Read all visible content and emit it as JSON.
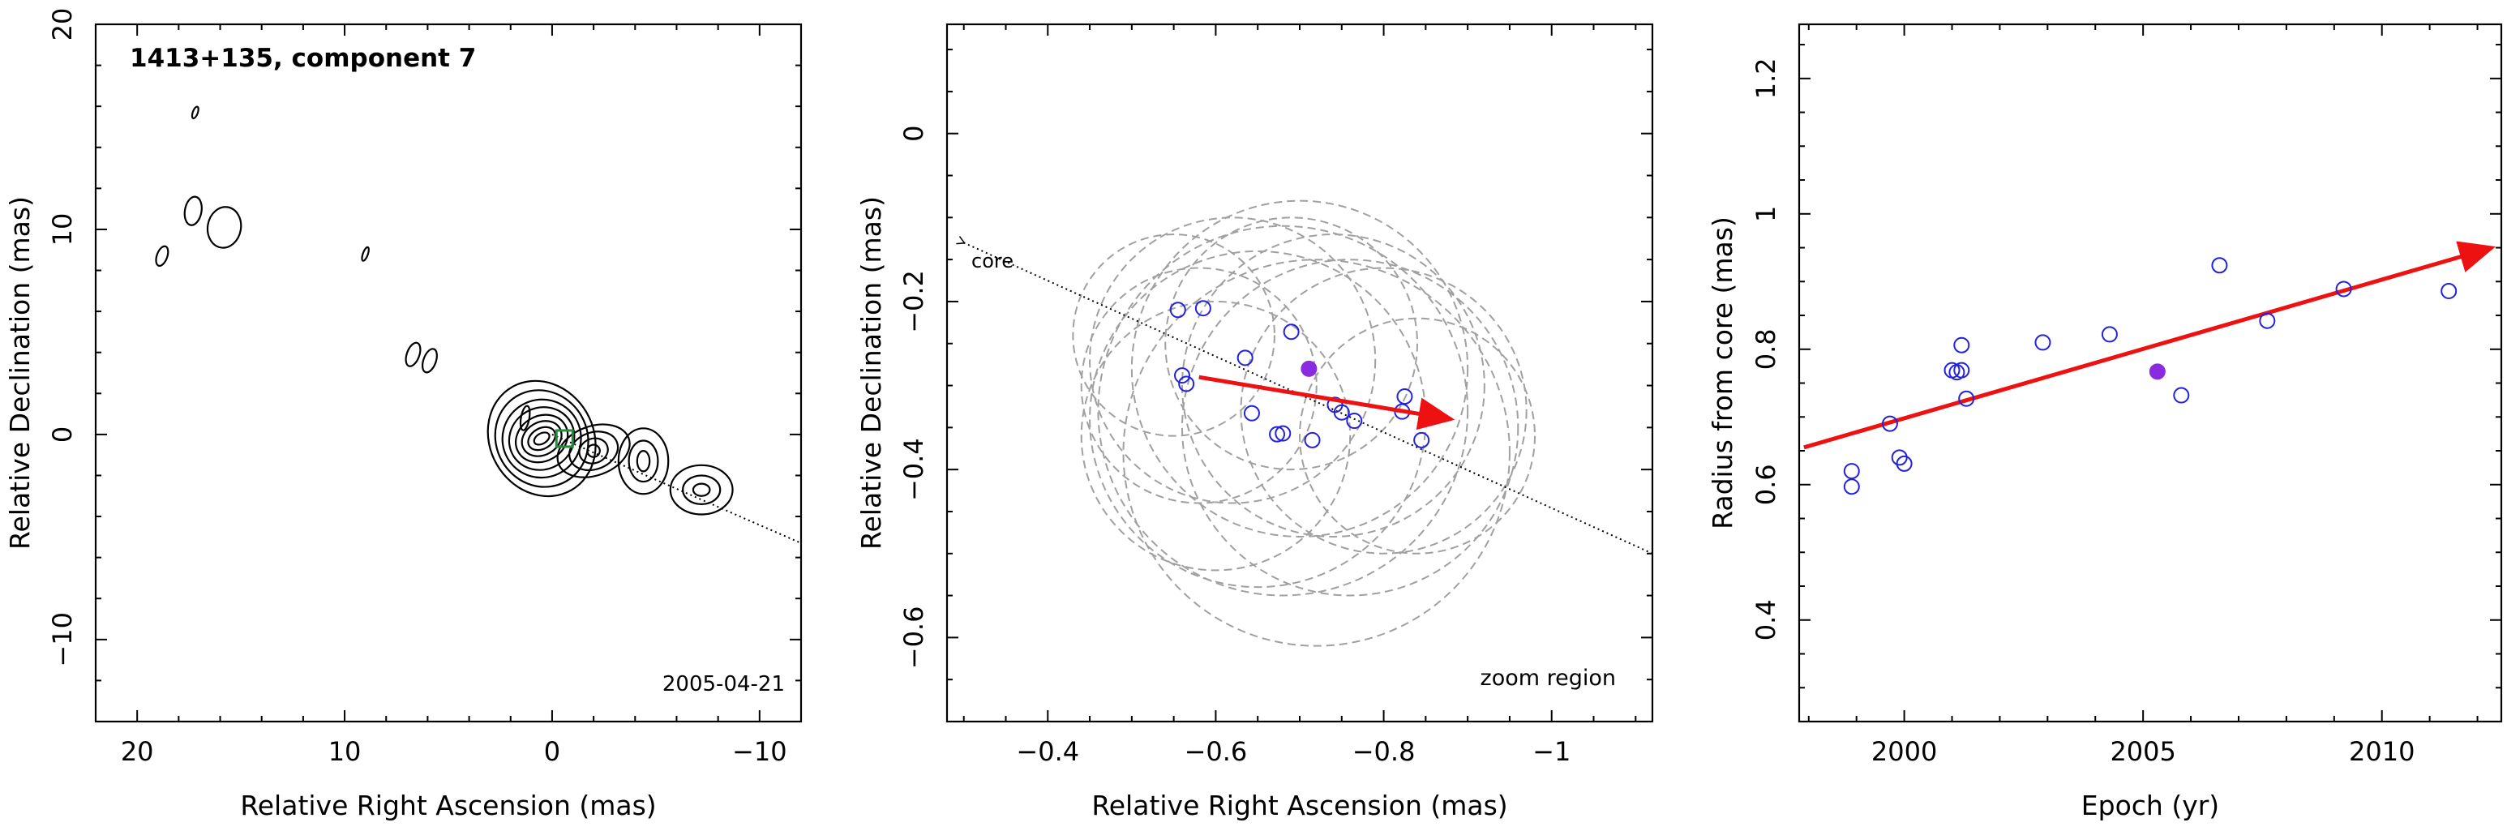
{
  "chart_data": [
    {
      "type": "contour",
      "panel": "map",
      "title": "1413+135, component 7",
      "date": "2005-04-21",
      "xlabel": "Relative Right Ascension (mas)",
      "ylabel": "Relative Declination (mas)",
      "xlim": [
        22,
        -12
      ],
      "ylim": [
        -14,
        20
      ],
      "xticks": [
        20,
        10,
        0,
        -10
      ],
      "yticks": [
        20,
        10,
        0,
        -10
      ],
      "xtick_labels": [
        "20",
        "10",
        "0",
        "−10"
      ],
      "ytick_labels": [
        "20",
        "10",
        "0",
        "−10"
      ],
      "core_line_end": [
        -12,
        -5.3
      ],
      "component_marker": [
        -0.6,
        -0.2
      ],
      "contour_groups": [
        {
          "cx": 0.5,
          "cy": -0.2,
          "rx": [
            0.4,
            0.7,
            1.0,
            1.3,
            1.6,
            1.9,
            2.2,
            2.5
          ],
          "ry": [
            0.25,
            0.5,
            0.8,
            1.1,
            1.5,
            1.9,
            2.4,
            2.9
          ],
          "rot": -30
        },
        {
          "cx": -2.0,
          "cy": -0.8,
          "rx": [
            0.3,
            0.7,
            1.2,
            1.8
          ],
          "ry": [
            0.3,
            0.6,
            0.9,
            1.2
          ],
          "rot": -20
        },
        {
          "cx": -4.4,
          "cy": -1.3,
          "rx": [
            0.3,
            0.7,
            1.2
          ],
          "ry": [
            0.5,
            1.0,
            1.6
          ],
          "rot": 0
        },
        {
          "cx": -7.2,
          "cy": -2.7,
          "rx": [
            0.4,
            0.9,
            1.5
          ],
          "ry": [
            0.3,
            0.7,
            1.2
          ],
          "rot": 0
        },
        {
          "cx": 15.8,
          "cy": 10.1,
          "rx": [
            0.8
          ],
          "ry": [
            1.0
          ],
          "rot": 10
        },
        {
          "cx": 17.3,
          "cy": 10.9,
          "rx": [
            0.4
          ],
          "ry": [
            0.7
          ],
          "rot": 10
        },
        {
          "cx": 18.8,
          "cy": 8.7,
          "rx": [
            0.25
          ],
          "ry": [
            0.5
          ],
          "rot": 20
        },
        {
          "cx": 6.7,
          "cy": 3.9,
          "rx": [
            0.3
          ],
          "ry": [
            0.6
          ],
          "rot": 20
        },
        {
          "cx": 5.9,
          "cy": 3.6,
          "rx": [
            0.3
          ],
          "ry": [
            0.6
          ],
          "rot": 20
        },
        {
          "cx": 9.0,
          "cy": 8.8,
          "rx": [
            0.12
          ],
          "ry": [
            0.35
          ],
          "rot": 20
        },
        {
          "cx": 17.2,
          "cy": 15.7,
          "rx": [
            0.12
          ],
          "ry": [
            0.3
          ],
          "rot": 20
        },
        {
          "cx": 1.3,
          "cy": 0.8,
          "rx": [
            0.2
          ],
          "ry": [
            0.6
          ],
          "rot": 10
        }
      ]
    },
    {
      "type": "scatter",
      "panel": "zoom",
      "xlabel": "Relative Right Ascension (mas)",
      "ylabel": "Relative Declination (mas)",
      "xlim": [
        -0.28,
        -1.12
      ],
      "ylim": [
        -0.7,
        0.13
      ],
      "xticks": [
        -0.4,
        -0.6,
        -0.8,
        -1.0
      ],
      "xtick_labels": [
        "−0.4",
        "−0.6",
        "−0.8",
        "−1"
      ],
      "yticks": [
        0,
        -0.2,
        -0.4,
        -0.6
      ],
      "ytick_labels": [
        "0",
        "−0.2",
        "−0.4",
        "−0.6"
      ],
      "annotation_core": "core",
      "annotation_region": "zoom region",
      "core_line": {
        "from": [
          -1.12,
          -0.5
        ],
        "to": [
          -0.3,
          -0.13
        ]
      },
      "points": [
        {
          "x": -0.555,
          "y": -0.21
        },
        {
          "x": -0.585,
          "y": -0.208
        },
        {
          "x": -0.56,
          "y": -0.288
        },
        {
          "x": -0.565,
          "y": -0.298
        },
        {
          "x": -0.635,
          "y": -0.267
        },
        {
          "x": -0.69,
          "y": -0.236
        },
        {
          "x": -0.643,
          "y": -0.333
        },
        {
          "x": -0.673,
          "y": -0.358
        },
        {
          "x": -0.68,
          "y": -0.357
        },
        {
          "x": -0.715,
          "y": -0.365
        },
        {
          "x": -0.742,
          "y": -0.323
        },
        {
          "x": -0.75,
          "y": -0.332
        },
        {
          "x": -0.765,
          "y": -0.342
        },
        {
          "x": -0.825,
          "y": -0.313
        },
        {
          "x": -0.822,
          "y": -0.331
        },
        {
          "x": -0.845,
          "y": -0.365
        }
      ],
      "highlight_point": {
        "x": -0.711,
        "y": -0.28
      },
      "circles": [
        {
          "x": -0.55,
          "y": -0.24,
          "r": 0.12
        },
        {
          "x": -0.58,
          "y": -0.3,
          "r": 0.14
        },
        {
          "x": -0.62,
          "y": -0.27,
          "r": 0.17
        },
        {
          "x": -0.65,
          "y": -0.34,
          "r": 0.2
        },
        {
          "x": -0.68,
          "y": -0.33,
          "r": 0.22
        },
        {
          "x": -0.7,
          "y": -0.28,
          "r": 0.2
        },
        {
          "x": -0.72,
          "y": -0.38,
          "r": 0.23
        },
        {
          "x": -0.74,
          "y": -0.3,
          "r": 0.18
        },
        {
          "x": -0.76,
          "y": -0.35,
          "r": 0.2
        },
        {
          "x": -0.8,
          "y": -0.33,
          "r": 0.17
        },
        {
          "x": -0.84,
          "y": -0.36,
          "r": 0.14
        },
        {
          "x": -0.69,
          "y": -0.25,
          "r": 0.15
        },
        {
          "x": -0.6,
          "y": -0.36,
          "r": 0.16
        }
      ],
      "velocity_arrow": {
        "from": [
          -0.58,
          -0.29
        ],
        "to": [
          -0.88,
          -0.34
        ]
      }
    },
    {
      "type": "scatter",
      "panel": "radius",
      "xlabel": "Epoch (yr)",
      "ylabel": "Radius from core (mas)",
      "xlim": [
        1997.8,
        2012.5
      ],
      "ylim": [
        0.25,
        1.28
      ],
      "xticks": [
        2000,
        2005,
        2010
      ],
      "xtick_labels": [
        "2000",
        "2005",
        "2010"
      ],
      "yticks": [
        0.4,
        0.6,
        0.8,
        1.0,
        1.2
      ],
      "ytick_labels": [
        "0.4",
        "0.6",
        "0.8",
        "1",
        "1.2"
      ],
      "points": [
        {
          "x": 1998.9,
          "y": 0.62
        },
        {
          "x": 1998.9,
          "y": 0.597
        },
        {
          "x": 1999.7,
          "y": 0.69
        },
        {
          "x": 1999.9,
          "y": 0.64
        },
        {
          "x": 2000.0,
          "y": 0.631
        },
        {
          "x": 2001.0,
          "y": 0.769
        },
        {
          "x": 2001.1,
          "y": 0.766
        },
        {
          "x": 2001.2,
          "y": 0.769
        },
        {
          "x": 2001.2,
          "y": 0.806
        },
        {
          "x": 2001.3,
          "y": 0.727
        },
        {
          "x": 2002.9,
          "y": 0.81
        },
        {
          "x": 2004.3,
          "y": 0.822
        },
        {
          "x": 2005.8,
          "y": 0.732
        },
        {
          "x": 2006.6,
          "y": 0.924
        },
        {
          "x": 2007.6,
          "y": 0.842
        },
        {
          "x": 2009.2,
          "y": 0.889
        },
        {
          "x": 2011.4,
          "y": 0.886
        }
      ],
      "highlight_point": {
        "x": 2005.3,
        "y": 0.767
      },
      "fit_arrow": {
        "from": [
          1997.9,
          0.655
        ],
        "to": [
          2012.3,
          0.95
        ]
      }
    }
  ],
  "colors": {
    "points": "#2222dd",
    "highlight": "#8a2be2",
    "arrow": "#ee1111",
    "circles": "#a0a0a0",
    "marker": "#1f8f3a"
  }
}
